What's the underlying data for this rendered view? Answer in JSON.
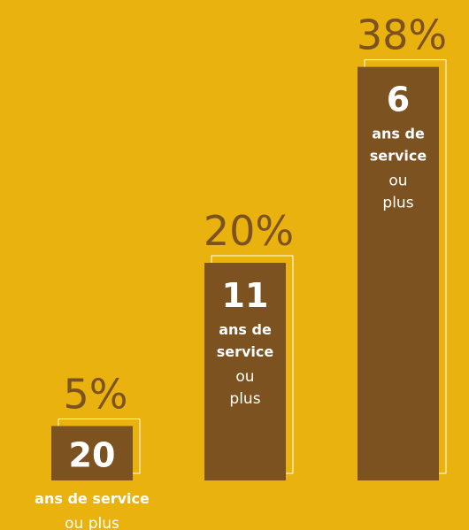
{
  "chart_data": {
    "type": "bar",
    "values": [
      5,
      20,
      38
    ],
    "value_labels": [
      "5%",
      "20%",
      "38%"
    ],
    "color": "#7b5220",
    "bar_labels": [
      {
        "number": "20",
        "bold_lines": [
          "ans de service"
        ],
        "light_lines": [
          "ou plus"
        ]
      },
      {
        "number": "11",
        "bold_lines": [
          "ans de",
          "service"
        ],
        "light_lines": [
          "ou",
          "plus"
        ]
      },
      {
        "number": "6",
        "bold_lines": [
          "ans de",
          "service"
        ],
        "light_lines": [
          "ou",
          "plus"
        ]
      }
    ]
  }
}
